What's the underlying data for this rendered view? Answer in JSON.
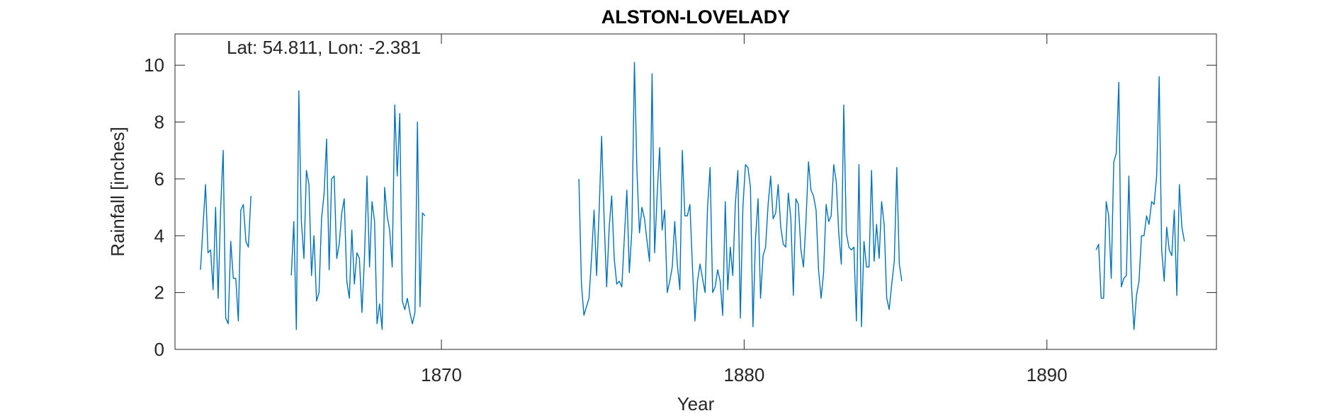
{
  "chart_data": {
    "type": "line",
    "title": "ALSTON-LOVELADY",
    "annotation": "Lat: 54.811, Lon: -2.381",
    "xlabel": "Year",
    "ylabel": "Rainfall [inches]",
    "xlim": [
      1861.2,
      1895.6
    ],
    "ylim": [
      0,
      11.1
    ],
    "x_ticks": [
      1870,
      1880,
      1890
    ],
    "y_ticks": [
      0,
      2,
      4,
      6,
      8,
      10
    ],
    "grid": false,
    "line_color": "#0072BD",
    "series": [
      {
        "segments": [
          {
            "start": [
              1862,
              1
            ],
            "values": [
              2.8,
              4.3,
              5.8,
              3.4,
              3.5,
              2.1,
              5.0,
              1.8,
              5.0,
              7.0,
              1.1,
              0.9,
              3.8,
              2.5,
              2.5,
              1.0,
              4.9,
              5.1,
              3.8,
              3.6,
              5.4
            ]
          },
          {
            "start": [
              1865,
              1
            ],
            "values": [
              2.6,
              4.5,
              0.7,
              9.1,
              4.5,
              3.2,
              6.3,
              5.8,
              2.6,
              4.0,
              1.7,
              2.0,
              4.6,
              5.5,
              7.4,
              2.8,
              6.0,
              6.1,
              3.2,
              3.7,
              4.8,
              5.3,
              2.4,
              1.8,
              4.2,
              2.3,
              3.4,
              3.2,
              1.3,
              3.2,
              6.1,
              2.9,
              5.2,
              4.5,
              0.9,
              1.6,
              0.7,
              5.7,
              4.7,
              4.2,
              2.9,
              8.6,
              6.1,
              8.3,
              1.7,
              1.4,
              1.8,
              1.3,
              0.9,
              1.3,
              8.0,
              1.5,
              4.8,
              4.7
            ]
          },
          {
            "start": [
              1874,
              7
            ],
            "values": [
              6.0,
              2.3,
              1.2,
              1.5,
              1.8,
              3.2,
              4.9,
              2.6,
              4.8,
              7.5,
              4.6,
              2.2,
              4.3,
              5.4,
              3.2,
              2.3,
              2.4,
              2.2,
              3.9,
              5.6,
              2.7,
              4.2,
              10.1,
              6.3,
              4.1,
              5.0,
              4.6,
              3.8,
              3.1,
              9.7,
              3.4,
              5.4,
              7.1,
              4.2,
              4.9,
              2.0,
              2.4,
              2.9,
              4.5,
              3.0,
              2.1,
              7.0,
              4.7,
              4.7,
              5.1,
              2.9,
              1.0,
              2.4,
              3.0,
              2.5,
              2.0,
              5.0,
              6.4,
              2.0,
              2.2,
              2.8,
              2.4,
              1.2,
              5.2,
              2.1,
              3.6,
              2.6,
              5.1,
              6.3,
              1.1,
              5.0,
              6.5,
              6.4,
              5.7,
              0.8,
              3.9,
              5.3,
              1.8,
              3.3,
              3.6,
              5.1,
              6.1,
              4.6,
              4.8,
              5.8,
              4.3,
              3.7,
              3.6,
              5.5,
              4.6,
              1.9,
              5.3,
              5.1,
              3.5,
              2.9,
              4.5,
              6.6,
              5.6,
              5.4,
              4.9,
              2.8,
              1.8,
              2.7,
              5.1,
              4.5,
              4.7,
              6.5,
              5.9,
              4.1,
              3.0,
              8.6,
              4.1,
              3.6,
              3.5,
              3.6,
              1.0,
              6.5,
              0.8,
              3.8,
              2.9,
              2.9,
              6.3,
              3.1,
              4.4,
              3.2,
              5.2,
              4.4,
              1.8,
              1.4,
              2.3,
              3.1,
              6.4,
              3.0,
              2.4
            ]
          },
          {
            "start": [
              1891,
              8
            ],
            "values": [
              3.5,
              3.7,
              1.8,
              1.8,
              5.2,
              4.7,
              2.5,
              6.6,
              6.9,
              9.4,
              2.2,
              2.5,
              2.6,
              6.1,
              2.3,
              0.7,
              1.9,
              2.4,
              4.0,
              4.0,
              4.7,
              4.4,
              5.2,
              5.1,
              6.1,
              9.6,
              3.5,
              2.4,
              4.3,
              3.5,
              3.3,
              4.9,
              1.9,
              5.8,
              4.3,
              3.8
            ]
          }
        ]
      }
    ]
  }
}
